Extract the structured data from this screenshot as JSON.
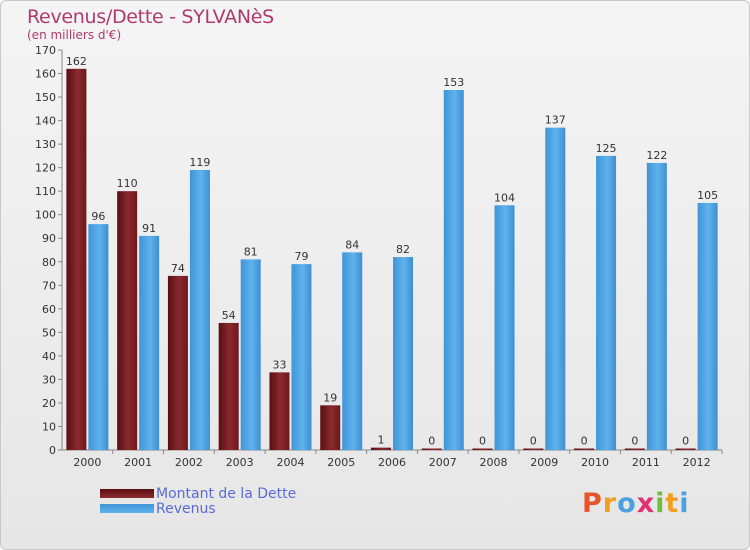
{
  "title": "Revenus/Dette - SYLVANèS",
  "subtitle": "(en milliers d'€)",
  "colors": {
    "dette": "#7a1c20",
    "revenus": "#4ba3e3",
    "title": "#b03a6a",
    "legend_text": "#5a6bd8"
  },
  "legend": {
    "dette_label": "Montant de la Dette",
    "revenus_label": "Revenus"
  },
  "logo": {
    "letters": [
      "P",
      "r",
      "o",
      "x",
      "i",
      "t",
      "i"
    ],
    "colors": [
      "#e8542a",
      "#f0a020",
      "#4aa0e0",
      "#e03070",
      "#6fbf3a",
      "#f0a020",
      "#4aa0e0"
    ]
  },
  "chart_data": {
    "type": "bar",
    "categories": [
      "2000",
      "2001",
      "2002",
      "2003",
      "2004",
      "2005",
      "2006",
      "2007",
      "2008",
      "2009",
      "2010",
      "2011",
      "2012"
    ],
    "series": [
      {
        "name": "Montant de la Dette",
        "values": [
          162,
          110,
          74,
          54,
          33,
          19,
          1,
          0,
          0,
          0,
          0,
          0,
          0
        ]
      },
      {
        "name": "Revenus",
        "values": [
          96,
          91,
          119,
          81,
          79,
          84,
          82,
          153,
          104,
          137,
          125,
          122,
          105
        ]
      }
    ],
    "ylim": [
      0,
      170
    ],
    "yticks": [
      0,
      10,
      20,
      30,
      40,
      50,
      60,
      70,
      80,
      90,
      100,
      110,
      120,
      130,
      140,
      150,
      160,
      170
    ],
    "grid": false,
    "legend_position": "bottom-left"
  }
}
